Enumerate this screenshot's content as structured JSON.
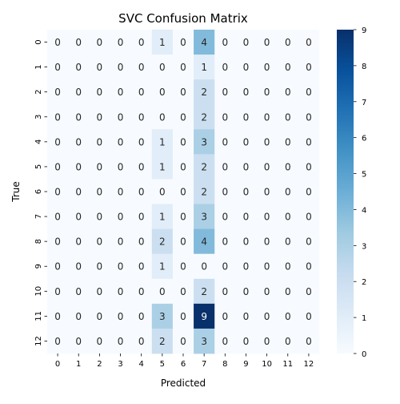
{
  "chart_data": {
    "type": "heatmap",
    "title": "SVC Confusion Matrix",
    "xlabel": "Predicted",
    "ylabel": "True",
    "x_categories": [
      "0",
      "1",
      "2",
      "3",
      "4",
      "5",
      "6",
      "7",
      "8",
      "9",
      "10",
      "11",
      "12"
    ],
    "y_categories": [
      "0",
      "1",
      "2",
      "3",
      "4",
      "5",
      "6",
      "7",
      "8",
      "9",
      "10",
      "11",
      "12"
    ],
    "values": [
      [
        0,
        0,
        0,
        0,
        0,
        1,
        0,
        4,
        0,
        0,
        0,
        0,
        0
      ],
      [
        0,
        0,
        0,
        0,
        0,
        0,
        0,
        1,
        0,
        0,
        0,
        0,
        0
      ],
      [
        0,
        0,
        0,
        0,
        0,
        0,
        0,
        2,
        0,
        0,
        0,
        0,
        0
      ],
      [
        0,
        0,
        0,
        0,
        0,
        0,
        0,
        2,
        0,
        0,
        0,
        0,
        0
      ],
      [
        0,
        0,
        0,
        0,
        0,
        1,
        0,
        3,
        0,
        0,
        0,
        0,
        0
      ],
      [
        0,
        0,
        0,
        0,
        0,
        1,
        0,
        2,
        0,
        0,
        0,
        0,
        0
      ],
      [
        0,
        0,
        0,
        0,
        0,
        0,
        0,
        2,
        0,
        0,
        0,
        0,
        0
      ],
      [
        0,
        0,
        0,
        0,
        0,
        1,
        0,
        3,
        0,
        0,
        0,
        0,
        0
      ],
      [
        0,
        0,
        0,
        0,
        0,
        2,
        0,
        4,
        0,
        0,
        0,
        0,
        0
      ],
      [
        0,
        0,
        0,
        0,
        0,
        1,
        0,
        0,
        0,
        0,
        0,
        0,
        0
      ],
      [
        0,
        0,
        0,
        0,
        0,
        0,
        0,
        2,
        0,
        0,
        0,
        0,
        0
      ],
      [
        0,
        0,
        0,
        0,
        0,
        3,
        0,
        9,
        0,
        0,
        0,
        0,
        0
      ],
      [
        0,
        0,
        0,
        0,
        0,
        2,
        0,
        3,
        0,
        0,
        0,
        0,
        0
      ]
    ],
    "colorbar": {
      "min": 0,
      "max": 9,
      "ticks": [
        "0",
        "1",
        "2",
        "3",
        "4",
        "5",
        "6",
        "7",
        "8",
        "9"
      ],
      "colormap": "Blues"
    }
  }
}
